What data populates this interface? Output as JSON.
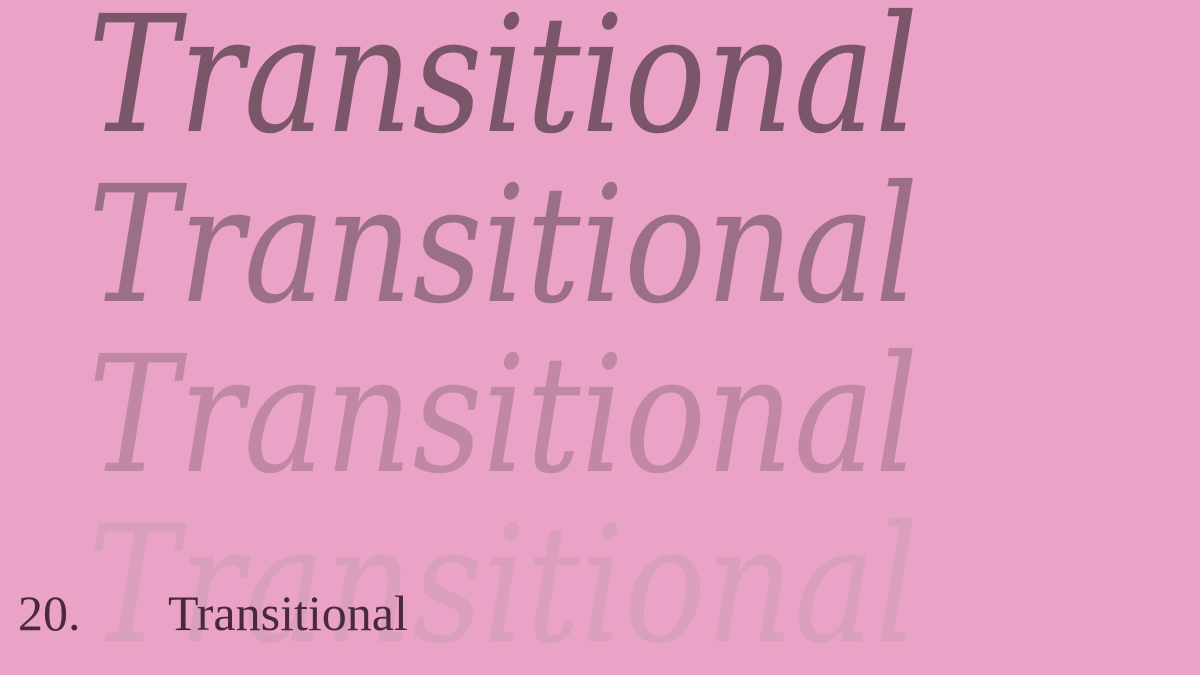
{
  "background_color": "#eaa3c7",
  "repeated_word": {
    "text": "Transitional",
    "colors": [
      "#7a5668",
      "#9c6f88",
      "#c188a6",
      "#d99fbd"
    ]
  },
  "caption": {
    "number": "20.",
    "title": "Transitional",
    "color": "#4a2a3a"
  }
}
